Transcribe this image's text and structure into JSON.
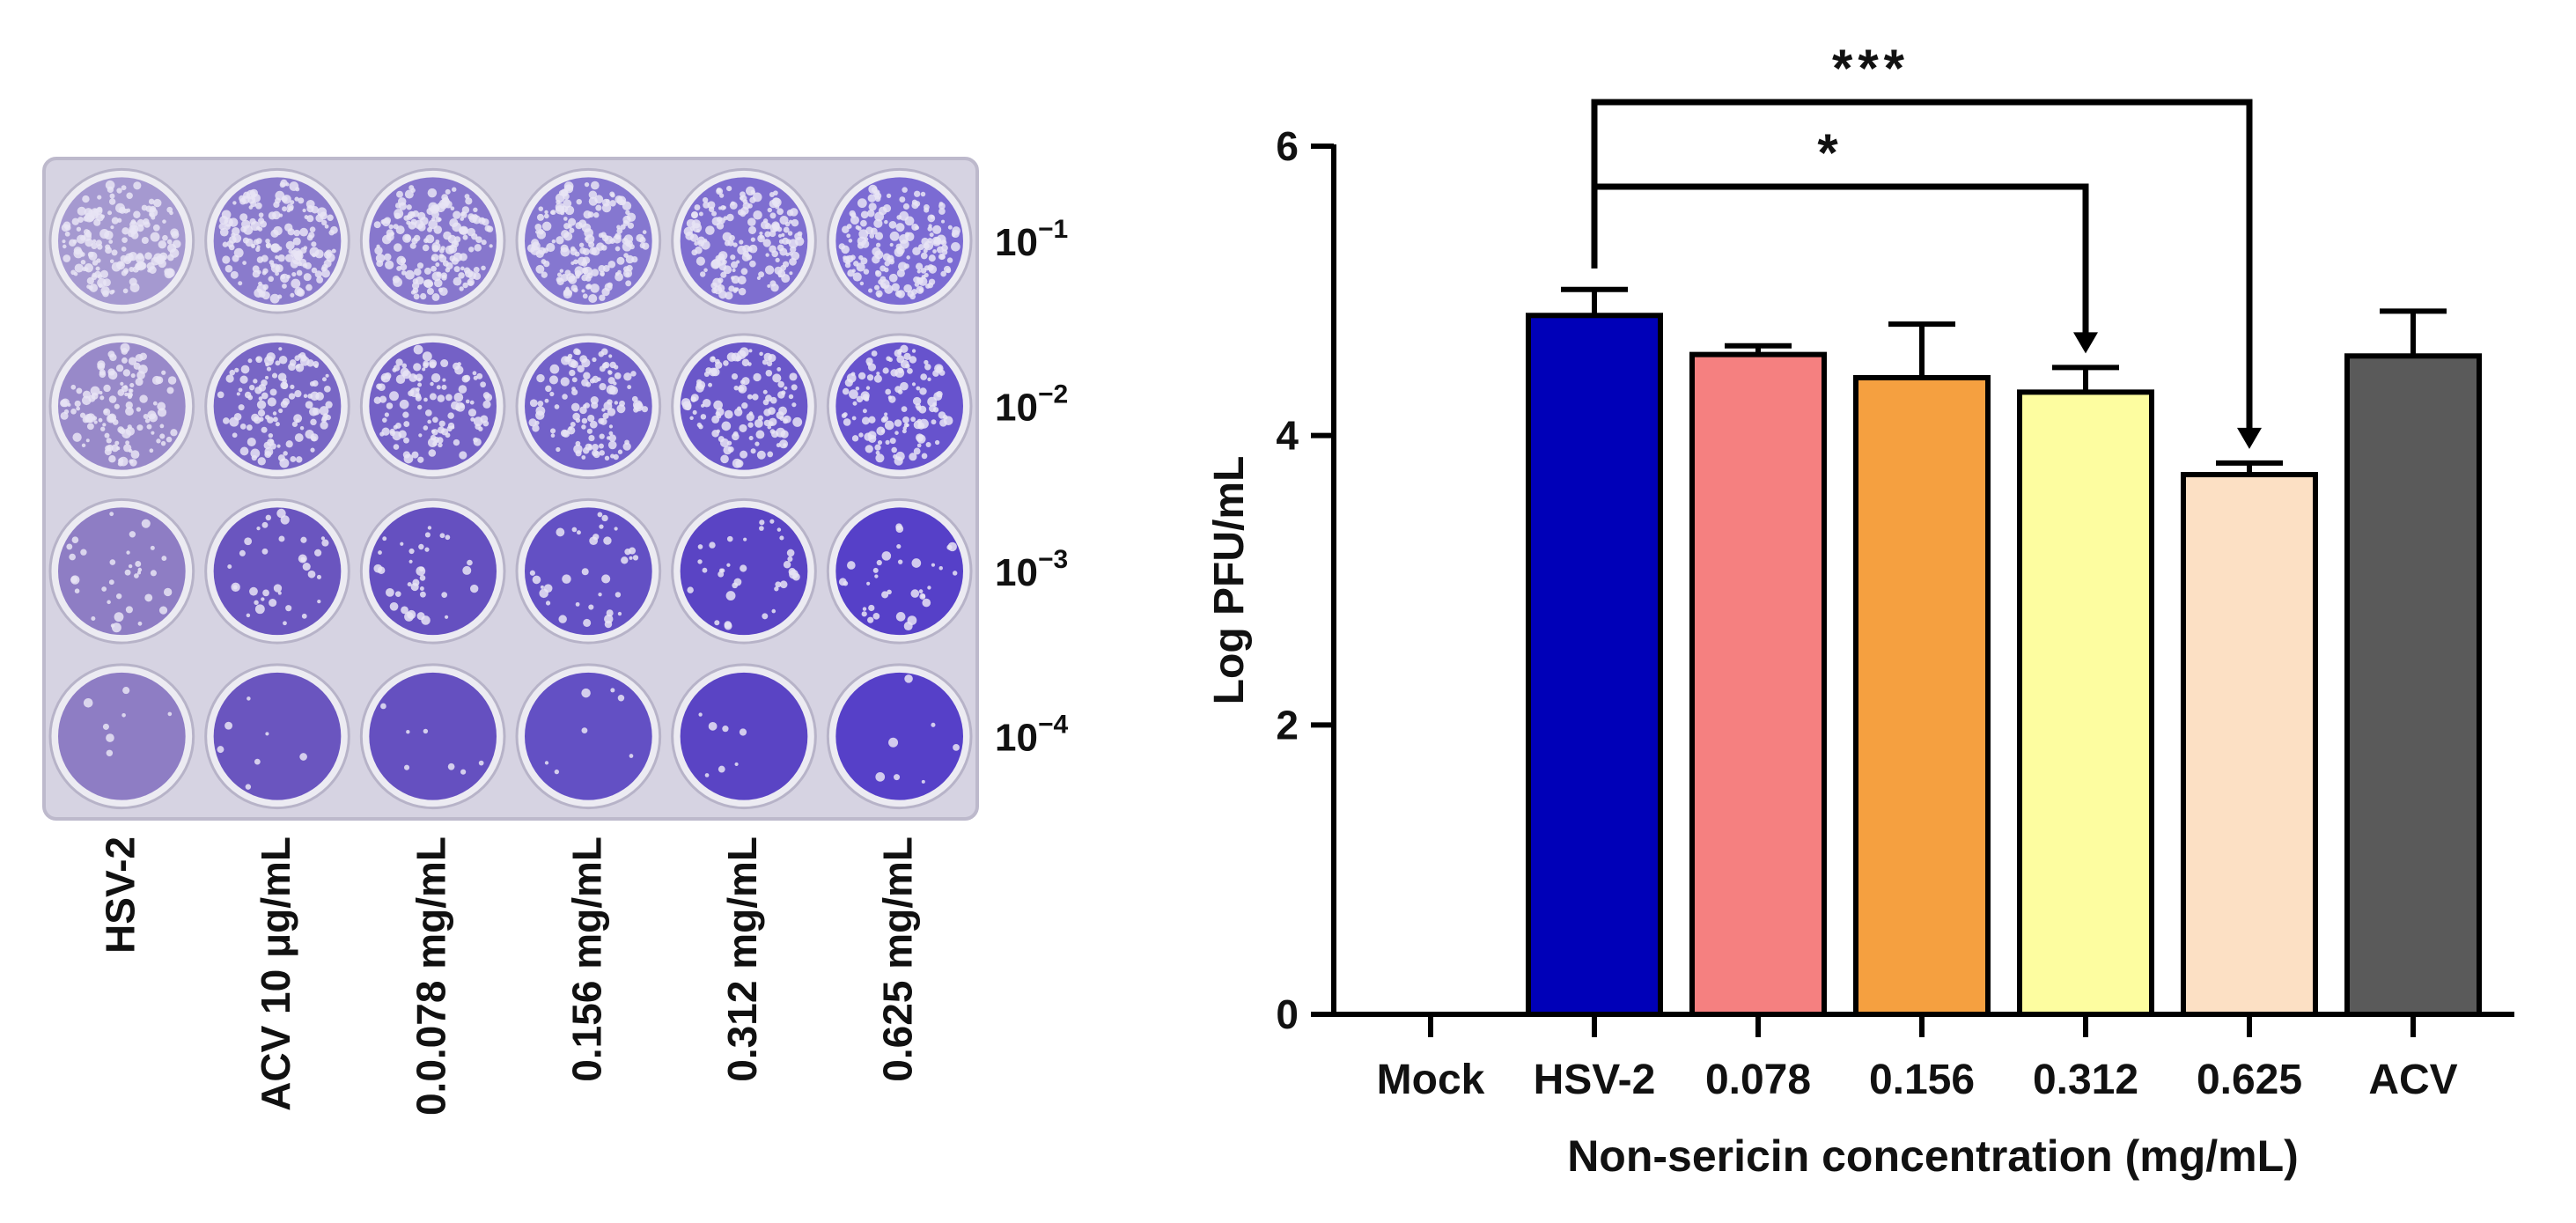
{
  "plate": {
    "columns": [
      {
        "label": "HSV-2",
        "color": "#8e7dc4"
      },
      {
        "label": "ACV 10 μg/mL",
        "color": "#6a55bf"
      },
      {
        "label": "0.0.078 mg/mL",
        "color": "#6550c0"
      },
      {
        "label": "0.156 mg/mL",
        "color": "#6350c4"
      },
      {
        "label": "0.312 mg/mL",
        "color": "#5a44c4"
      },
      {
        "label": "0.625 mg/mL",
        "color": "#5640c8"
      }
    ],
    "rows": [
      {
        "label_base": "10",
        "label_exp": "−1",
        "plaque_density": 1.0
      },
      {
        "label_base": "10",
        "label_exp": "−2",
        "plaque_density": 0.7
      },
      {
        "label_base": "10",
        "label_exp": "−3",
        "plaque_density": 0.2
      },
      {
        "label_base": "10",
        "label_exp": "−4",
        "plaque_density": 0.04
      }
    ]
  },
  "chart_data": {
    "type": "bar",
    "xlabel": "Non-sericin concentration (mg/mL)",
    "ylabel": "Log PFU/mL",
    "ylim": [
      0,
      6
    ],
    "yticks": [
      "0",
      "2",
      "4",
      "6"
    ],
    "categories": [
      "Mock",
      "HSV-2",
      "0.078",
      "0.156",
      "0.312",
      "0.625",
      "ACV"
    ],
    "values": [
      0,
      4.83,
      4.56,
      4.4,
      4.3,
      3.73,
      4.55
    ],
    "errors": [
      0,
      0.18,
      0.06,
      0.37,
      0.17,
      0.08,
      0.31
    ],
    "colors": [
      "#ffffff",
      "#0000b8",
      "#f58080",
      "#f5a040",
      "#fdfda0",
      "#fce0c4",
      "#5a5a5a"
    ],
    "significance": [
      {
        "from": 1,
        "to": 4,
        "label": "*"
      },
      {
        "from": 1,
        "to": 5,
        "label": "***"
      }
    ]
  }
}
